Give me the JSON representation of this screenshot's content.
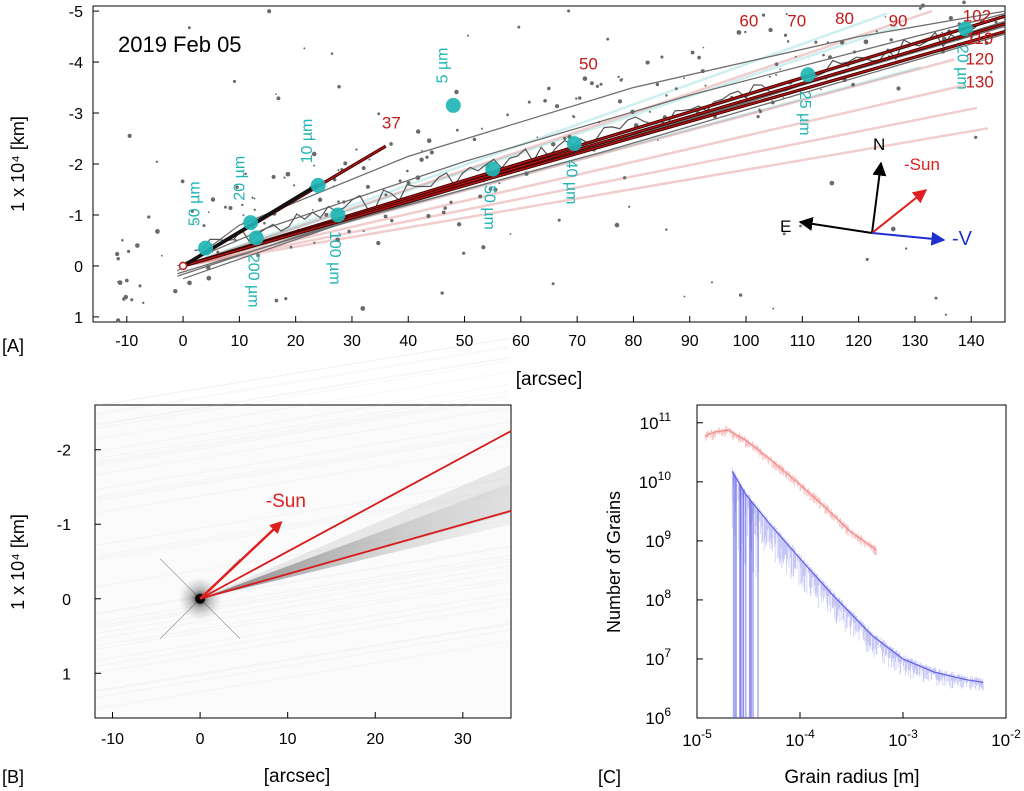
{
  "chart_data": [
    {
      "panel": "[A]",
      "type": "scatter",
      "title": "2019 Feb 05",
      "xlabel": "[arcsec]",
      "ylabel": "1 x 10⁴ [km]",
      "xlim": [
        -16,
        146
      ],
      "ylim": [
        1.1,
        -5.1
      ],
      "xticks": [
        -10,
        0,
        10,
        20,
        30,
        40,
        50,
        60,
        70,
        80,
        90,
        100,
        110,
        120,
        130,
        140
      ],
      "yticks": [
        -5,
        -4,
        -3,
        -2,
        -1,
        0,
        1
      ],
      "ytick_labels": [
        "-5",
        "-4",
        "-3",
        "-2",
        "-1",
        "0",
        "1"
      ],
      "colors": {
        "syndyne": "#1fb5b5",
        "synchrone": "#c21a1a",
        "direction_sun": "#e03030",
        "direction_v": "#2030d0",
        "axis_text": "#000000"
      },
      "syndyne_points": [
        {
          "label": "5 µm",
          "x": 48,
          "y": -3.15
        },
        {
          "label": "10 µm",
          "x": 24,
          "y": -1.58
        },
        {
          "label": "20 µm",
          "x": 12,
          "y": -0.85
        },
        {
          "label": "50 µm",
          "x": 4,
          "y": -0.35
        },
        {
          "label": "200 µm",
          "x": 13,
          "y": -0.55
        },
        {
          "label": "100 µm",
          "x": 27.5,
          "y": -1.0
        },
        {
          "label": "50 µm",
          "x": 55,
          "y": -1.9
        },
        {
          "label": "40 µm",
          "x": 69.5,
          "y": -2.4
        },
        {
          "label": "25 µm",
          "x": 111,
          "y": -3.75
        },
        {
          "label": "20 µm",
          "x": 139,
          "y": -4.65
        }
      ],
      "synchrone_labels": [
        {
          "label": "37",
          "x": 37,
          "y": -2.7
        },
        {
          "label": "50",
          "x": 72,
          "y": -3.85
        },
        {
          "label": "60",
          "x": 100.5,
          "y": -4.7
        },
        {
          "label": "70",
          "x": 109,
          "y": -4.7
        },
        {
          "label": "80",
          "x": 117.5,
          "y": -4.75
        },
        {
          "label": "90",
          "x": 127,
          "y": -4.7
        },
        {
          "label": "102",
          "x": 141,
          "y": -4.8
        },
        {
          "label": "110",
          "x": 141.5,
          "y": -4.35
        },
        {
          "label": "120",
          "x": 141.5,
          "y": -3.95
        },
        {
          "label": "130",
          "x": 141.5,
          "y": -3.5
        }
      ],
      "compass": {
        "north": "N",
        "east": "E",
        "sun": "-Sun",
        "velocity": "-V"
      }
    },
    {
      "panel": "[B]",
      "type": "image",
      "xlabel": "[arcsec]",
      "ylabel": "1 x 10⁴ [km]",
      "xlim": [
        -12,
        35.5
      ],
      "ylim": [
        1.6,
        -2.6
      ],
      "xticks": [
        -10,
        0,
        10,
        20,
        30
      ],
      "yticks": [
        -2,
        -1,
        0,
        1
      ],
      "ytick_labels": [
        "-2",
        "-1",
        "0",
        "1"
      ],
      "sun_label": "-Sun",
      "boundary_lines": [
        {
          "from": [
            0,
            0
          ],
          "to": [
            35.5,
            -2.25
          ]
        },
        {
          "from": [
            0,
            0
          ],
          "to": [
            35.5,
            -1.18
          ]
        }
      ]
    },
    {
      "panel": "[C]",
      "type": "line",
      "xscale": "log",
      "yscale": "log",
      "xlabel": "Grain radius [m]",
      "ylabel": "Number of Grains",
      "xlim": [
        1e-05,
        0.01
      ],
      "ylim": [
        1000000,
        200000000000
      ],
      "xtick_mantissa": [
        "10",
        "10",
        "10",
        "10"
      ],
      "xtick_exponent": [
        "-5",
        "-4",
        "-3",
        "-2"
      ],
      "xtick_values": [
        1e-05,
        0.0001,
        0.001,
        0.01
      ],
      "ytick_mantissa": [
        "10",
        "10",
        "10",
        "10",
        "10",
        "10"
      ],
      "ytick_exponent": [
        "6",
        "7",
        "8",
        "9",
        "10",
        "11"
      ],
      "ytick_values": [
        1000000,
        10000000,
        100000000,
        1000000000,
        10000000000,
        100000000000
      ],
      "series": [
        {
          "color": "#f08c8c",
          "x": [
            1.2e-05,
            1.5e-05,
            2e-05,
            3e-05,
            5e-05,
            0.0001,
            0.0002,
            0.0003,
            0.00055
          ],
          "y": [
            60000000000,
            70000000000,
            75000000000,
            50000000000,
            25000000000,
            9000000000,
            3000000000,
            1500000000,
            700000000
          ]
        },
        {
          "color": "#5f5fe8",
          "x": [
            2.2e-05,
            3e-05,
            5e-05,
            0.0001,
            0.0002,
            0.0005,
            0.001,
            0.002,
            0.004,
            0.006
          ],
          "y": [
            15000000000,
            6000000000,
            2000000000,
            500000000,
            130000000,
            25000000,
            10000000,
            6000000,
            4500000,
            4000000
          ]
        }
      ]
    }
  ]
}
